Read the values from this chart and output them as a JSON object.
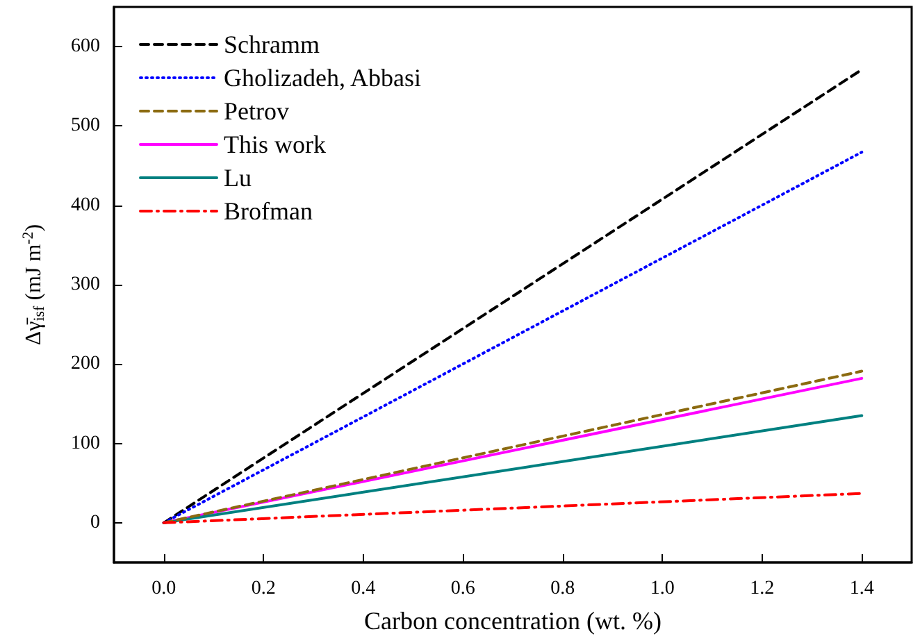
{
  "chart_data": {
    "type": "line",
    "xlabel": "Carbon concentration (wt. %)",
    "ylabel": "Δγ̄$_{isf}$ (mJ m$^{-2}$)",
    "x": [
      0,
      1.4
    ],
    "series": [
      {
        "name": "Schramm",
        "color": "#000000",
        "line_style": "dashed",
        "values": [
          0,
          571
        ]
      },
      {
        "name": "Gholizadeh, Abbasi",
        "color": "#0000ff",
        "line_style": "dotted",
        "values": [
          0,
          467
        ]
      },
      {
        "name": "Petrov",
        "color": "#8b6a10",
        "line_style": "dashed",
        "values": [
          0,
          191
        ]
      },
      {
        "name": "This work",
        "color": "#ff00ff",
        "line_style": "solid",
        "values": [
          0,
          182
        ]
      },
      {
        "name": "Lu",
        "color": "#008080",
        "line_style": "solid",
        "values": [
          0,
          135
        ]
      },
      {
        "name": "Brofman",
        "color": "#ff0000",
        "line_style": "dashdot",
        "values": [
          0,
          37
        ]
      }
    ],
    "xlim": [
      -0.1,
      1.5
    ],
    "ylim": [
      -50,
      650
    ],
    "xticks": [
      {
        "value": 0,
        "label": "0.0"
      },
      {
        "value": 0.2,
        "label": "0.2"
      },
      {
        "value": 0.4,
        "label": "0.4"
      },
      {
        "value": 0.6,
        "label": "0.6"
      },
      {
        "value": 0.8,
        "label": "0.8"
      },
      {
        "value": 1,
        "label": "1.0"
      },
      {
        "value": 1.2,
        "label": "1.2"
      },
      {
        "value": 1.4,
        "label": "1.4"
      }
    ],
    "yticks": [
      0,
      100,
      200,
      300,
      400,
      500,
      600
    ],
    "grid": false,
    "legend": "top left",
    "marker": "none"
  }
}
